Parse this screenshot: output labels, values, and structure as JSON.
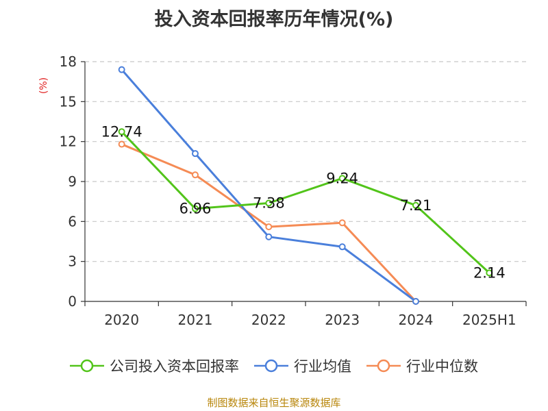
{
  "chart_data": {
    "type": "line",
    "title": "投入资本回报率历年情况(%)",
    "ylabel": "(%)",
    "xlabel": "",
    "categories": [
      "2020",
      "2021",
      "2022",
      "2023",
      "2024",
      "2025H1"
    ],
    "ylim": [
      0,
      18
    ],
    "yticks": [
      0,
      3,
      6,
      9,
      12,
      15,
      18
    ],
    "grid": "horizontal-dashed",
    "legend_position": "bottom",
    "series": [
      {
        "name": "公司投入资本回报率",
        "color": "#52c41a",
        "values": [
          12.74,
          6.96,
          7.38,
          9.24,
          7.21,
          2.14
        ],
        "show_labels": true
      },
      {
        "name": "行业均值",
        "color": "#4a7fdb",
        "values": [
          17.4,
          11.1,
          4.85,
          4.1,
          0.0,
          null
        ],
        "show_labels": false
      },
      {
        "name": "行业中位数",
        "color": "#f58b55",
        "values": [
          11.8,
          9.5,
          5.6,
          5.9,
          0.0,
          null
        ],
        "show_labels": false
      }
    ]
  },
  "source": "制图数据来自恒生聚源数据库"
}
